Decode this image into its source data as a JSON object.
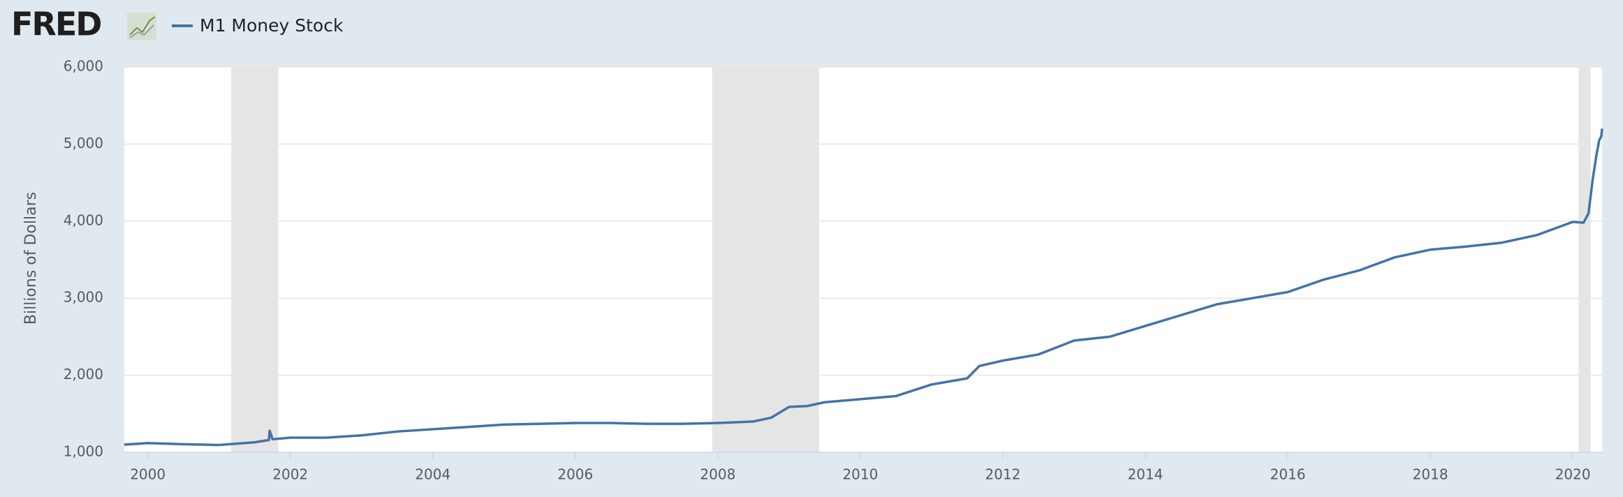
{
  "brand": "FRED",
  "chart_data": {
    "type": "line",
    "y_label": "Billions of Dollars",
    "x": [
      1999.67,
      2000.0,
      2000.5,
      2001.0,
      2001.5,
      2001.7,
      2001.71,
      2001.75,
      2002.0,
      2002.5,
      2003.0,
      2003.5,
      2004.0,
      2004.5,
      2005.0,
      2005.5,
      2006.0,
      2006.5,
      2007.0,
      2007.5,
      2008.0,
      2008.5,
      2008.75,
      2009.0,
      2009.25,
      2009.5,
      2010.0,
      2010.5,
      2011.0,
      2011.5,
      2011.67,
      2012.0,
      2012.5,
      2013.0,
      2013.5,
      2014.0,
      2014.5,
      2015.0,
      2015.5,
      2016.0,
      2016.5,
      2017.0,
      2017.5,
      2018.0,
      2018.5,
      2019.0,
      2019.5,
      2020.0,
      2020.15,
      2020.22,
      2020.28,
      2020.33,
      2020.37,
      2020.4,
      2020.41
    ],
    "series": [
      {
        "name": "M1 Money Stock",
        "color": "#4572a7",
        "values": [
          1100,
          1120,
          1105,
          1095,
          1130,
          1160,
          1280,
          1170,
          1190,
          1190,
          1220,
          1270,
          1300,
          1330,
          1360,
          1370,
          1380,
          1380,
          1370,
          1370,
          1380,
          1400,
          1450,
          1590,
          1600,
          1650,
          1690,
          1730,
          1880,
          1960,
          2120,
          2190,
          2270,
          2450,
          2500,
          2640,
          2780,
          2920,
          3000,
          3080,
          3240,
          3360,
          3530,
          3630,
          3670,
          3720,
          3820,
          3990,
          3980,
          4100,
          4550,
          4850,
          5050,
          5100,
          5200
        ]
      }
    ],
    "recessions": [
      [
        2001.17,
        2001.83
      ],
      [
        2007.92,
        2009.42
      ],
      [
        2020.08,
        2020.25
      ]
    ],
    "xlim": [
      1999.67,
      2020.41
    ],
    "xticks": [
      2000,
      2002,
      2004,
      2006,
      2008,
      2010,
      2012,
      2014,
      2016,
      2018,
      2020
    ],
    "ylim": [
      1000,
      6000
    ],
    "yticks": [
      {
        "value": 1000,
        "label": "1,000"
      },
      {
        "value": 2000,
        "label": "2,000"
      },
      {
        "value": 3000,
        "label": "3,000"
      },
      {
        "value": 4000,
        "label": "4,000"
      },
      {
        "value": 5000,
        "label": "5,000"
      },
      {
        "value": 6000,
        "label": "6,000"
      }
    ],
    "grid": true
  }
}
